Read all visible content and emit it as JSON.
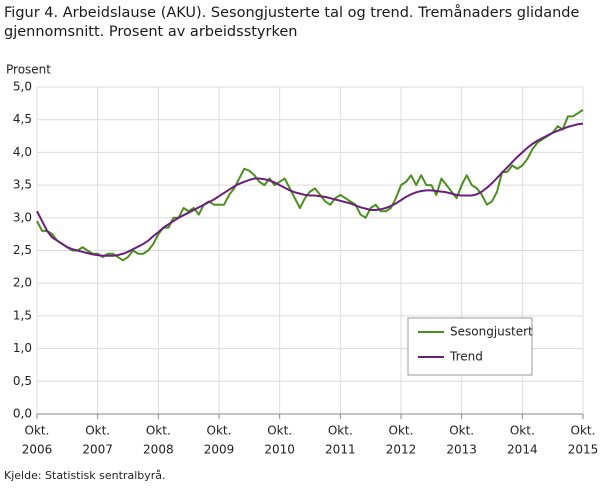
{
  "chart_data": {
    "type": "line",
    "title": [
      "Figur 4. Arbeidslause (AKU). Sesongjusterte tal og trend. Tremånaders glidande",
      "gjennomsnitt. Prosent av arbeidsstyrken"
    ],
    "y_label": "Prosent",
    "source": "Kjelde: Statistisk sentralbyrå.",
    "x": [
      "2006-10",
      "2006-11",
      "2006-12",
      "2007-01",
      "2007-02",
      "2007-03",
      "2007-04",
      "2007-05",
      "2007-06",
      "2007-07",
      "2007-08",
      "2007-09",
      "2007-10",
      "2007-11",
      "2007-12",
      "2008-01",
      "2008-02",
      "2008-03",
      "2008-04",
      "2008-05",
      "2008-06",
      "2008-07",
      "2008-08",
      "2008-09",
      "2008-10",
      "2008-11",
      "2008-12",
      "2009-01",
      "2009-02",
      "2009-03",
      "2009-04",
      "2009-05",
      "2009-06",
      "2009-07",
      "2009-08",
      "2009-09",
      "2009-10",
      "2009-11",
      "2009-12",
      "2010-01",
      "2010-02",
      "2010-03",
      "2010-04",
      "2010-05",
      "2010-06",
      "2010-07",
      "2010-08",
      "2010-09",
      "2010-10",
      "2010-11",
      "2010-12",
      "2011-01",
      "2011-02",
      "2011-03",
      "2011-04",
      "2011-05",
      "2011-06",
      "2011-07",
      "2011-08",
      "2011-09",
      "2011-10",
      "2011-11",
      "2011-12",
      "2012-01",
      "2012-02",
      "2012-03",
      "2012-04",
      "2012-05",
      "2012-06",
      "2012-07",
      "2012-08",
      "2012-09",
      "2012-10",
      "2012-11",
      "2012-12",
      "2013-01",
      "2013-02",
      "2013-03",
      "2013-04",
      "2013-05",
      "2013-06",
      "2013-07",
      "2013-08",
      "2013-09",
      "2013-10",
      "2013-11",
      "2013-12",
      "2014-01",
      "2014-02",
      "2014-03",
      "2014-04",
      "2014-05",
      "2014-06",
      "2014-07",
      "2014-08",
      "2014-09",
      "2014-10",
      "2014-11",
      "2014-12",
      "2015-01",
      "2015-02",
      "2015-03",
      "2015-04",
      "2015-05",
      "2015-06",
      "2015-07",
      "2015-08",
      "2015-09",
      "2015-10"
    ],
    "series": [
      {
        "name": "Sesongjustert",
        "color": "#4b8f1d",
        "values": [
          2.95,
          2.8,
          2.8,
          2.75,
          2.65,
          2.6,
          2.55,
          2.5,
          2.5,
          2.55,
          2.5,
          2.45,
          2.45,
          2.4,
          2.45,
          2.45,
          2.4,
          2.35,
          2.4,
          2.5,
          2.45,
          2.45,
          2.5,
          2.6,
          2.75,
          2.85,
          2.85,
          3.0,
          3.0,
          3.15,
          3.1,
          3.15,
          3.05,
          3.2,
          3.25,
          3.2,
          3.2,
          3.2,
          3.35,
          3.45,
          3.6,
          3.75,
          3.72,
          3.65,
          3.55,
          3.5,
          3.6,
          3.5,
          3.55,
          3.6,
          3.45,
          3.3,
          3.15,
          3.3,
          3.4,
          3.45,
          3.35,
          3.25,
          3.2,
          3.3,
          3.35,
          3.3,
          3.25,
          3.2,
          3.05,
          3.0,
          3.15,
          3.2,
          3.1,
          3.1,
          3.15,
          3.3,
          3.5,
          3.55,
          3.65,
          3.5,
          3.65,
          3.5,
          3.5,
          3.35,
          3.6,
          3.5,
          3.4,
          3.3,
          3.5,
          3.65,
          3.5,
          3.45,
          3.35,
          3.2,
          3.25,
          3.4,
          3.7,
          3.7,
          3.8,
          3.75,
          3.8,
          3.9,
          4.05,
          4.15,
          4.2,
          4.25,
          4.3,
          4.4,
          4.35,
          4.55,
          4.55,
          4.6,
          4.65
        ]
      },
      {
        "name": "Trend",
        "color": "#6b1f7c",
        "values": [
          3.1,
          2.95,
          2.8,
          2.7,
          2.65,
          2.6,
          2.55,
          2.52,
          2.5,
          2.48,
          2.46,
          2.44,
          2.43,
          2.42,
          2.42,
          2.42,
          2.43,
          2.45,
          2.48,
          2.52,
          2.56,
          2.6,
          2.65,
          2.72,
          2.78,
          2.85,
          2.9,
          2.95,
          3.0,
          3.04,
          3.08,
          3.12,
          3.16,
          3.2,
          3.24,
          3.28,
          3.33,
          3.38,
          3.43,
          3.48,
          3.52,
          3.55,
          3.58,
          3.6,
          3.6,
          3.59,
          3.57,
          3.54,
          3.5,
          3.46,
          3.42,
          3.39,
          3.37,
          3.35,
          3.34,
          3.34,
          3.33,
          3.32,
          3.3,
          3.28,
          3.26,
          3.24,
          3.22,
          3.19,
          3.16,
          3.14,
          3.12,
          3.12,
          3.13,
          3.15,
          3.18,
          3.22,
          3.27,
          3.32,
          3.36,
          3.39,
          3.41,
          3.42,
          3.42,
          3.41,
          3.4,
          3.39,
          3.37,
          3.35,
          3.34,
          3.34,
          3.34,
          3.36,
          3.4,
          3.46,
          3.53,
          3.61,
          3.69,
          3.77,
          3.85,
          3.93,
          4.0,
          4.07,
          4.13,
          4.18,
          4.22,
          4.26,
          4.3,
          4.33,
          4.36,
          4.39,
          4.41,
          4.43,
          4.44
        ]
      }
    ],
    "ylim": [
      0,
      5
    ],
    "yticks": [
      {
        "value": 0,
        "label": "0,0"
      },
      {
        "value": 0.5,
        "label": "0,5"
      },
      {
        "value": 1,
        "label": "1,0"
      },
      {
        "value": 1.5,
        "label": "1,5"
      },
      {
        "value": 2,
        "label": "2,0"
      },
      {
        "value": 2.5,
        "label": "2,5"
      },
      {
        "value": 3,
        "label": "3,0"
      },
      {
        "value": 3.5,
        "label": "3,5"
      },
      {
        "value": 4,
        "label": "4,0"
      },
      {
        "value": 4.5,
        "label": "4,5"
      },
      {
        "value": 5,
        "label": "5,0"
      }
    ],
    "xticks": [
      {
        "value": "2006-10",
        "label": [
          "Okt.",
          "2006"
        ]
      },
      {
        "value": "2007-10",
        "label": [
          "Okt.",
          "2007"
        ]
      },
      {
        "value": "2008-10",
        "label": [
          "Okt.",
          "2008"
        ]
      },
      {
        "value": "2009-10",
        "label": [
          "Okt.",
          "2009"
        ]
      },
      {
        "value": "2010-10",
        "label": [
          "Okt.",
          "2010"
        ]
      },
      {
        "value": "2011-10",
        "label": [
          "Okt.",
          "2011"
        ]
      },
      {
        "value": "2012-10",
        "label": [
          "Okt.",
          "2012"
        ]
      },
      {
        "value": "2013-10",
        "label": [
          "Okt.",
          "2013"
        ]
      },
      {
        "value": "2014-10",
        "label": [
          "Okt.",
          "2014"
        ]
      },
      {
        "value": "2015-10",
        "label": [
          "Okt.",
          "2015"
        ]
      }
    ],
    "grid": true,
    "legend": "lower right"
  }
}
